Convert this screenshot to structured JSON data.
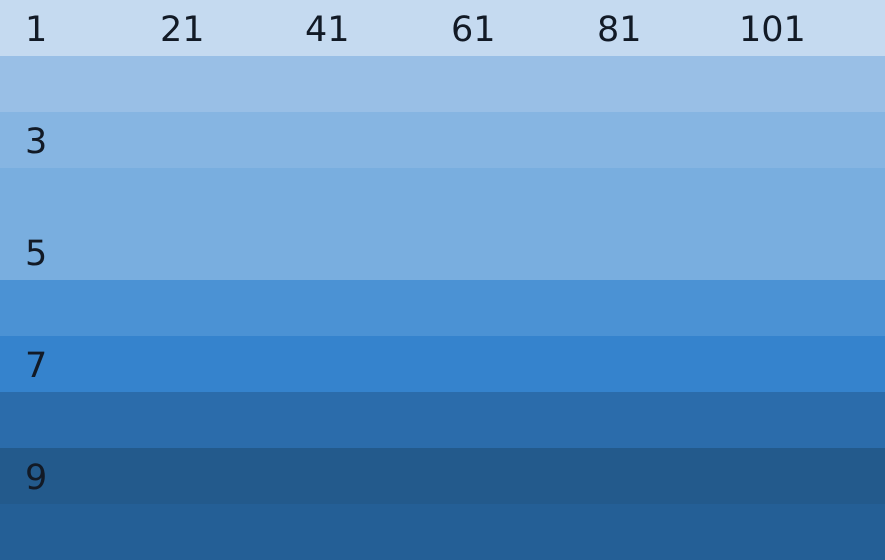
{
  "header_labels": [
    "1",
    "21",
    "41",
    "61",
    "81",
    "101"
  ],
  "rows": [
    {
      "label": "",
      "color": "#c5daf0"
    },
    {
      "label": "",
      "color": "#99bfe6"
    },
    {
      "label": "3",
      "color": "#86b5e2"
    },
    {
      "label": "",
      "color": "#79aedf"
    },
    {
      "label": "5",
      "color": "#79aedf"
    },
    {
      "label": "",
      "color": "#4b92d4"
    },
    {
      "label": "7",
      "color": "#3583cd"
    },
    {
      "label": "",
      "color": "#2b6cab"
    },
    {
      "label": "9",
      "color": "#235a8c"
    },
    {
      "label": "",
      "color": "#245f96"
    }
  ]
}
